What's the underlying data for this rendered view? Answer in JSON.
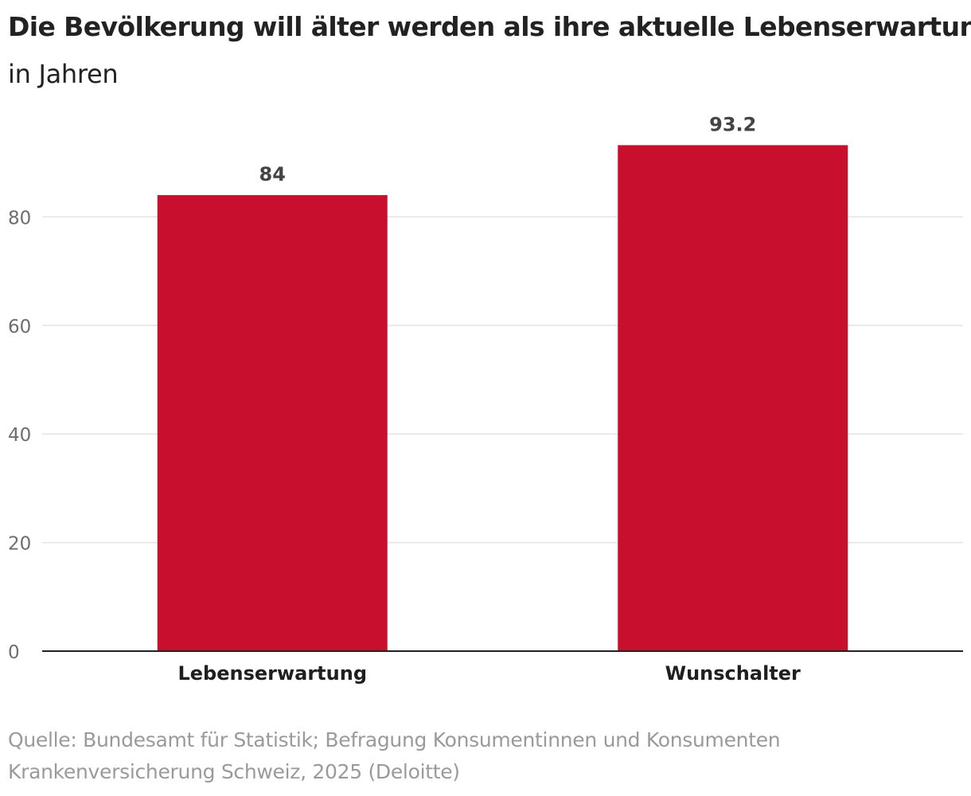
{
  "chart_data": {
    "type": "bar",
    "title": "Die Bevölkerung will älter werden als ihre aktuelle Lebenserwartung",
    "subtitle": "in Jahren",
    "categories": [
      "Lebenserwartung",
      "Wunschalter"
    ],
    "values": [
      84,
      93.2
    ],
    "value_labels": [
      "84",
      "93.2"
    ],
    "xlabel": "",
    "ylabel": "",
    "ylim": [
      0,
      100
    ],
    "yticks": [
      0,
      20,
      40,
      60,
      80
    ],
    "ytick_labels": [
      "0",
      "20",
      "40",
      "60",
      "80"
    ],
    "grid": true,
    "legend": "none",
    "bar_color": "#c8102e",
    "grid_color": "#e3e3e3",
    "axis_color": "#222222"
  },
  "source": "Quelle: Bundesamt für Statistik; Befragung Konsumentinnen und Konsumenten Krankenversicherung Schweiz, 2025 (Deloitte)"
}
